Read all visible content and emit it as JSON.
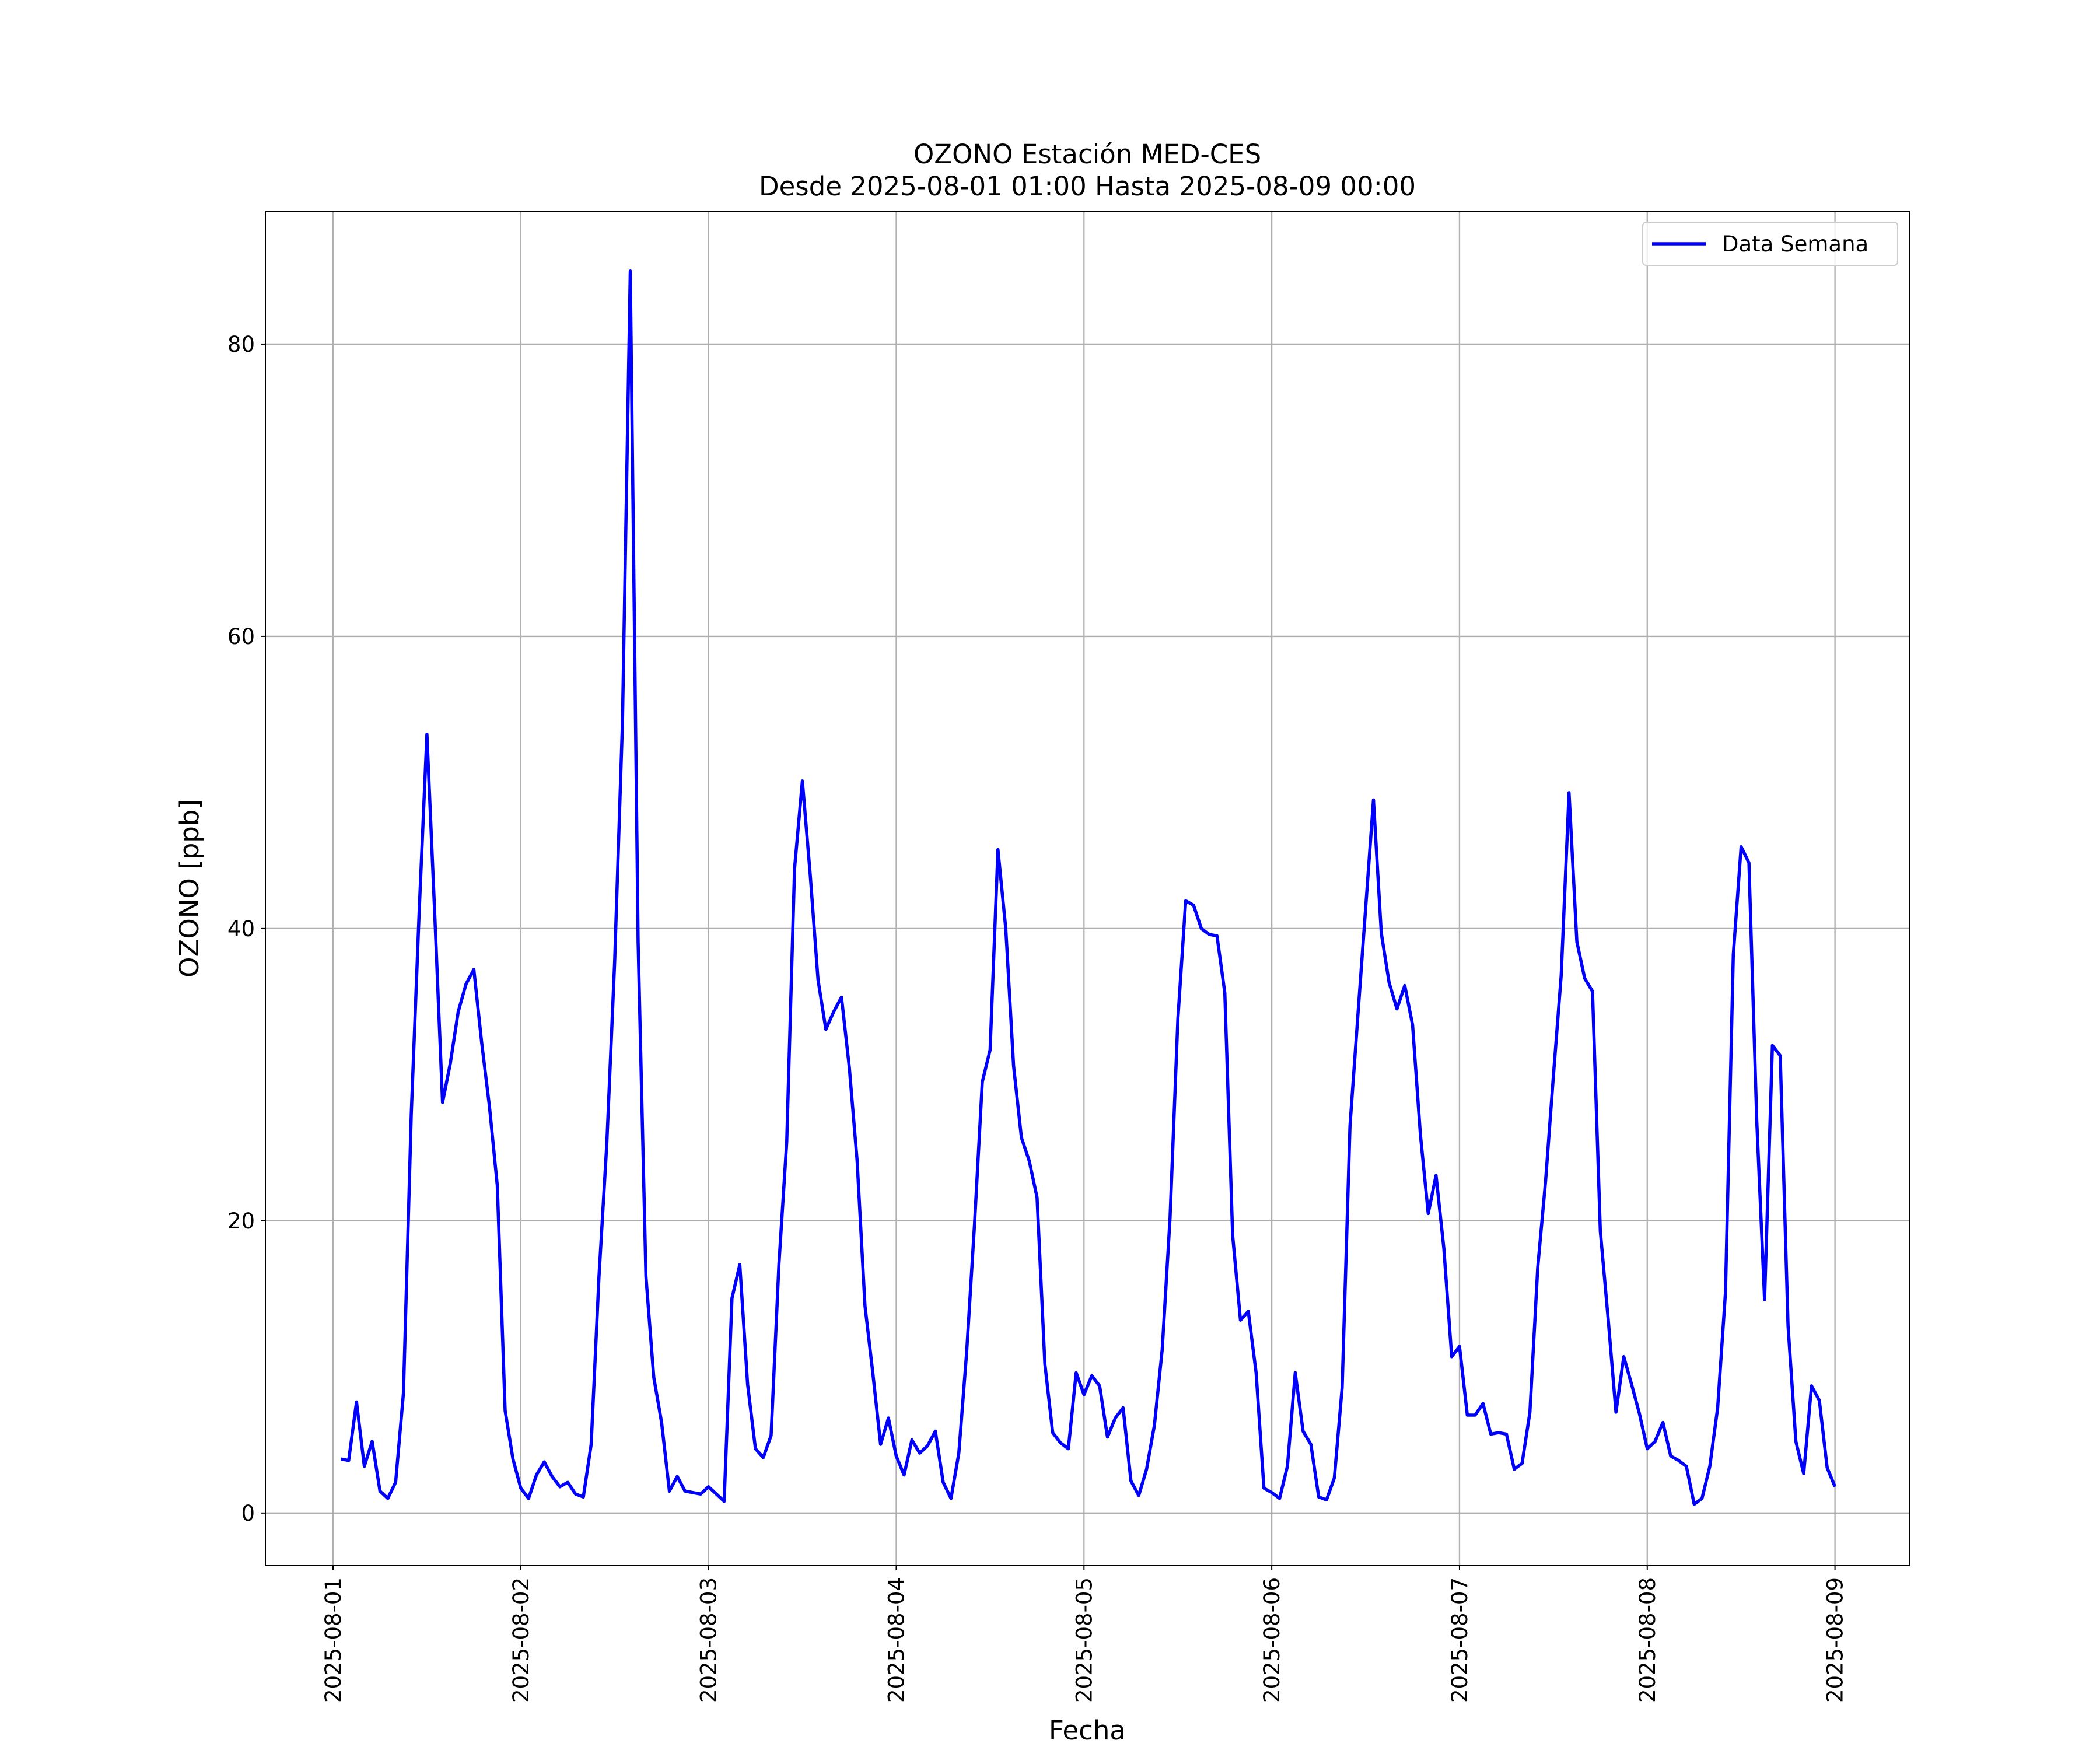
{
  "chart_data": {
    "type": "line",
    "title": "OZONO Estación MED-CES",
    "subtitle": "Desde 2025-08-01 01:00 Hasta 2025-08-09 00:00",
    "xlabel": "Fecha",
    "ylabel": "OZONO [ppb]",
    "xlim": [
      "2025-07-31 15:21",
      "2025-08-09 09:30"
    ],
    "xticks": [
      "2025-08-01",
      "2025-08-02",
      "2025-08-03",
      "2025-08-04",
      "2025-08-05",
      "2025-08-06",
      "2025-08-07",
      "2025-08-08",
      "2025-08-09"
    ],
    "ylim": [
      -3.6,
      89.1
    ],
    "yticks": [
      0,
      20,
      40,
      60,
      80
    ],
    "grid": true,
    "legend": "upper right",
    "x": [
      "2025-08-01 01:00",
      "2025-08-01 02:00",
      "2025-08-01 03:00",
      "2025-08-01 04:00",
      "2025-08-01 05:00",
      "2025-08-01 06:00",
      "2025-08-01 07:00",
      "2025-08-01 08:00",
      "2025-08-01 09:00",
      "2025-08-01 10:00",
      "2025-08-01 11:00",
      "2025-08-01 12:00",
      "2025-08-01 13:00",
      "2025-08-01 14:00",
      "2025-08-01 15:00",
      "2025-08-01 16:00",
      "2025-08-01 17:00",
      "2025-08-01 18:00",
      "2025-08-01 19:00",
      "2025-08-01 20:00",
      "2025-08-01 21:00",
      "2025-08-01 22:00",
      "2025-08-01 23:00",
      "2025-08-02 00:00",
      "2025-08-02 01:00",
      "2025-08-02 02:00",
      "2025-08-02 03:00",
      "2025-08-02 04:00",
      "2025-08-02 05:00",
      "2025-08-02 06:00",
      "2025-08-02 07:00",
      "2025-08-02 08:00",
      "2025-08-02 09:00",
      "2025-08-02 10:00",
      "2025-08-02 11:00",
      "2025-08-02 12:00",
      "2025-08-02 13:00",
      "2025-08-02 14:00",
      "2025-08-02 15:00",
      "2025-08-02 16:00",
      "2025-08-02 17:00",
      "2025-08-02 18:00",
      "2025-08-02 19:00",
      "2025-08-02 20:00",
      "2025-08-02 21:00",
      "2025-08-02 22:00",
      "2025-08-02 23:00",
      "2025-08-03 00:00",
      "2025-08-03 01:00",
      "2025-08-03 02:00",
      "2025-08-03 03:00",
      "2025-08-03 04:00",
      "2025-08-03 05:00",
      "2025-08-03 06:00",
      "2025-08-03 07:00",
      "2025-08-03 08:00",
      "2025-08-03 09:00",
      "2025-08-03 10:00",
      "2025-08-03 11:00",
      "2025-08-03 12:00",
      "2025-08-03 13:00",
      "2025-08-03 14:00",
      "2025-08-03 15:00",
      "2025-08-03 16:00",
      "2025-08-03 17:00",
      "2025-08-03 18:00",
      "2025-08-03 19:00",
      "2025-08-03 20:00",
      "2025-08-03 21:00",
      "2025-08-03 22:00",
      "2025-08-03 23:00",
      "2025-08-04 00:00",
      "2025-08-04 01:00",
      "2025-08-04 02:00",
      "2025-08-04 03:00",
      "2025-08-04 04:00",
      "2025-08-04 05:00",
      "2025-08-04 06:00",
      "2025-08-04 07:00",
      "2025-08-04 08:00",
      "2025-08-04 09:00",
      "2025-08-04 10:00",
      "2025-08-04 11:00",
      "2025-08-04 12:00",
      "2025-08-04 13:00",
      "2025-08-04 14:00",
      "2025-08-04 15:00",
      "2025-08-04 16:00",
      "2025-08-04 17:00",
      "2025-08-04 18:00",
      "2025-08-04 19:00",
      "2025-08-04 20:00",
      "2025-08-04 21:00",
      "2025-08-04 22:00",
      "2025-08-04 23:00",
      "2025-08-05 00:00",
      "2025-08-05 01:00",
      "2025-08-05 02:00",
      "2025-08-05 03:00",
      "2025-08-05 04:00",
      "2025-08-05 05:00",
      "2025-08-05 06:00",
      "2025-08-05 07:00",
      "2025-08-05 08:00",
      "2025-08-05 09:00",
      "2025-08-05 10:00",
      "2025-08-05 11:00",
      "2025-08-05 12:00",
      "2025-08-05 13:00",
      "2025-08-05 14:00",
      "2025-08-05 15:00",
      "2025-08-05 16:00",
      "2025-08-05 17:00",
      "2025-08-05 18:00",
      "2025-08-05 19:00",
      "2025-08-05 20:00",
      "2025-08-05 21:00",
      "2025-08-05 22:00",
      "2025-08-05 23:00",
      "2025-08-06 00:00",
      "2025-08-06 01:00",
      "2025-08-06 02:00",
      "2025-08-06 03:00",
      "2025-08-06 04:00",
      "2025-08-06 05:00",
      "2025-08-06 06:00",
      "2025-08-06 07:00",
      "2025-08-06 08:00",
      "2025-08-06 09:00",
      "2025-08-06 10:00",
      "2025-08-06 11:00",
      "2025-08-06 12:00",
      "2025-08-06 13:00",
      "2025-08-06 14:00",
      "2025-08-06 15:00",
      "2025-08-06 16:00",
      "2025-08-06 17:00",
      "2025-08-06 18:00",
      "2025-08-06 19:00",
      "2025-08-06 20:00",
      "2025-08-06 21:00",
      "2025-08-06 22:00",
      "2025-08-06 23:00",
      "2025-08-07 00:00",
      "2025-08-07 01:00",
      "2025-08-07 02:00",
      "2025-08-07 03:00",
      "2025-08-07 04:00",
      "2025-08-07 05:00",
      "2025-08-07 06:00",
      "2025-08-07 07:00",
      "2025-08-07 08:00",
      "2025-08-07 09:00",
      "2025-08-07 10:00",
      "2025-08-07 11:00",
      "2025-08-07 12:00",
      "2025-08-07 13:00",
      "2025-08-07 14:00",
      "2025-08-07 15:00",
      "2025-08-07 16:00",
      "2025-08-07 17:00",
      "2025-08-07 18:00",
      "2025-08-07 19:00",
      "2025-08-07 20:00",
      "2025-08-07 21:00",
      "2025-08-07 22:00",
      "2025-08-07 23:00",
      "2025-08-08 00:00",
      "2025-08-08 01:00",
      "2025-08-08 02:00",
      "2025-08-08 03:00",
      "2025-08-08 04:00",
      "2025-08-08 05:00",
      "2025-08-08 06:00",
      "2025-08-08 07:00",
      "2025-08-08 08:00",
      "2025-08-08 09:00",
      "2025-08-08 10:00",
      "2025-08-08 11:00",
      "2025-08-08 12:00",
      "2025-08-08 13:00",
      "2025-08-08 14:00",
      "2025-08-08 15:00",
      "2025-08-08 16:00",
      "2025-08-08 17:00",
      "2025-08-08 18:00",
      "2025-08-08 19:00",
      "2025-08-08 20:00",
      "2025-08-08 21:00",
      "2025-08-08 22:00",
      "2025-08-08 23:00",
      "2025-08-09 00:00"
    ],
    "series": [
      {
        "name": "Data Semana",
        "color": "#0000ff",
        "values": [
          3.7,
          3.6,
          7.6,
          3.2,
          4.9,
          1.5,
          1.0,
          2.1,
          8.2,
          27.3,
          41.0,
          53.3,
          41.0,
          28.1,
          30.8,
          34.3,
          36.2,
          37.2,
          32.2,
          27.8,
          22.4,
          7.0,
          3.7,
          1.7,
          1.0,
          2.6,
          3.5,
          2.5,
          1.8,
          2.1,
          1.3,
          1.1,
          4.7,
          16.2,
          25.3,
          37.7,
          54.1,
          85.0,
          39.1,
          16.2,
          9.3,
          6.2,
          1.5,
          2.5,
          1.5,
          1.4,
          1.3,
          1.8,
          1.3,
          0.8,
          14.7,
          17.0,
          8.8,
          4.4,
          3.8,
          5.3,
          17.0,
          25.4,
          44.1,
          50.1,
          43.7,
          36.5,
          33.1,
          34.3,
          35.3,
          30.5,
          24.1,
          14.2,
          9.6,
          4.7,
          6.5,
          3.9,
          2.6,
          5.0,
          4.1,
          4.6,
          5.6,
          2.1,
          1.0,
          4.1,
          11.0,
          19.7,
          29.5,
          31.7,
          45.4,
          40.0,
          30.6,
          25.7,
          24.1,
          21.6,
          10.2,
          5.5,
          4.8,
          4.4,
          9.6,
          8.1,
          9.4,
          8.7,
          5.2,
          6.5,
          7.2,
          2.2,
          1.2,
          3.0,
          6.0,
          11.2,
          20.2,
          33.8,
          41.9,
          41.6,
          40.0,
          39.6,
          39.5,
          35.6,
          19.0,
          13.2,
          13.8,
          9.6,
          1.7,
          1.4,
          1.0,
          3.2,
          9.6,
          5.6,
          4.7,
          1.1,
          0.9,
          2.4,
          8.6,
          26.5,
          34.0,
          41.4,
          48.8,
          39.7,
          36.3,
          34.5,
          36.1,
          33.4,
          25.9,
          20.5,
          23.1,
          18.1,
          10.7,
          11.4,
          6.7,
          6.7,
          7.5,
          5.4,
          5.5,
          5.4,
          3.0,
          3.4,
          6.9,
          16.8,
          22.7,
          29.9,
          36.8,
          49.3,
          39.1,
          36.6,
          35.7,
          19.3,
          13.3,
          6.9,
          10.7,
          8.8,
          6.8,
          4.4,
          4.9,
          6.2,
          3.9,
          3.6,
          3.2,
          0.6,
          1.0,
          3.2,
          7.2,
          15.1,
          38.2,
          45.6,
          44.5,
          26.8,
          14.6,
          32.0,
          31.3,
          12.8,
          4.9,
          2.7,
          8.7,
          7.7,
          3.1,
          1.8
        ]
      }
    ]
  }
}
